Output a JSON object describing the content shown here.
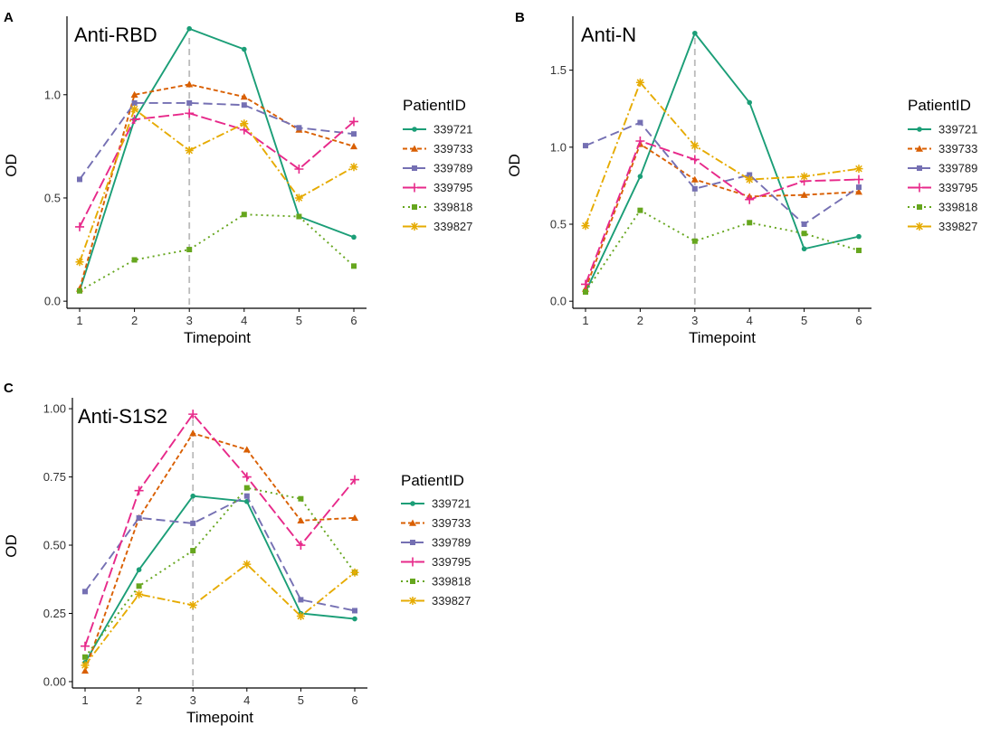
{
  "series_styles": [
    {
      "color": "#1b9e77",
      "dash": "",
      "marker": "circle"
    },
    {
      "color": "#d95f02",
      "dash": "5,3",
      "marker": "triangle"
    },
    {
      "color": "#7570b3",
      "dash": "10,5",
      "marker": "square"
    },
    {
      "color": "#e7298a",
      "dash": "12,4",
      "marker": "plus"
    },
    {
      "color": "#66a61e",
      "dash": "2,4",
      "marker": "square"
    },
    {
      "color": "#e6ab02",
      "dash": "9,3,2,3",
      "marker": "star"
    }
  ],
  "reference_line_color": "#bbbbbb",
  "chart_data": [
    {
      "type": "line",
      "panel": "A",
      "title": "Anti-RBD",
      "xlabel": "Timepoint",
      "ylabel": "OD",
      "x": [
        1,
        2,
        3,
        4,
        5,
        6
      ],
      "ylim": [
        -0.03,
        1.38
      ],
      "yticks": [
        0.0,
        0.5,
        1.0
      ],
      "ytick_labels": [
        "0.0",
        "0.5",
        "1.0"
      ],
      "vline": 3,
      "legend_title": "PatientID",
      "legend_position": "right",
      "series": [
        {
          "name": "339721",
          "values": [
            0.05,
            0.88,
            1.32,
            1.22,
            0.41,
            0.31
          ]
        },
        {
          "name": "339733",
          "values": [
            0.06,
            1.0,
            1.05,
            0.99,
            0.83,
            0.75
          ]
        },
        {
          "name": "339789",
          "values": [
            0.59,
            0.96,
            0.96,
            0.95,
            0.84,
            0.81
          ]
        },
        {
          "name": "339795",
          "values": [
            0.36,
            0.88,
            0.91,
            0.83,
            0.64,
            0.87
          ]
        },
        {
          "name": "339818",
          "values": [
            0.05,
            0.2,
            0.25,
            0.42,
            0.41,
            0.17
          ]
        },
        {
          "name": "339827",
          "values": [
            0.19,
            0.93,
            0.73,
            0.86,
            0.5,
            0.65
          ]
        }
      ]
    },
    {
      "type": "line",
      "panel": "B",
      "title": "Anti-N",
      "xlabel": "Timepoint",
      "ylabel": "OD",
      "x": [
        1,
        2,
        3,
        4,
        5,
        6
      ],
      "ylim": [
        -0.04,
        1.85
      ],
      "yticks": [
        0.0,
        0.5,
        1.0,
        1.5
      ],
      "ytick_labels": [
        "0.0",
        "0.5",
        "1.0",
        "1.5"
      ],
      "vline": 3,
      "legend_title": "PatientID",
      "legend_position": "right",
      "series": [
        {
          "name": "339721",
          "values": [
            0.06,
            0.81,
            1.74,
            1.29,
            0.34,
            0.42
          ]
        },
        {
          "name": "339733",
          "values": [
            0.08,
            1.02,
            0.79,
            0.68,
            0.69,
            0.71
          ]
        },
        {
          "name": "339789",
          "values": [
            1.01,
            1.16,
            0.73,
            0.82,
            0.5,
            0.74
          ]
        },
        {
          "name": "339795",
          "values": [
            0.11,
            1.04,
            0.92,
            0.66,
            0.78,
            0.79
          ]
        },
        {
          "name": "339818",
          "values": [
            0.06,
            0.59,
            0.39,
            0.51,
            0.44,
            0.33
          ]
        },
        {
          "name": "339827",
          "values": [
            0.49,
            1.42,
            1.01,
            0.79,
            0.81,
            0.86
          ]
        }
      ]
    },
    {
      "type": "line",
      "panel": "C",
      "title": "Anti-S1S2",
      "xlabel": "Timepoint",
      "ylabel": "OD",
      "x": [
        1,
        2,
        3,
        4,
        5,
        6
      ],
      "ylim": [
        -0.02,
        1.04
      ],
      "yticks": [
        0.0,
        0.25,
        0.5,
        0.75,
        1.0
      ],
      "ytick_labels": [
        "0.00",
        "0.25",
        "0.50",
        "0.75",
        "1.00"
      ],
      "vline": 3,
      "legend_title": "PatientID",
      "legend_position": "right",
      "series": [
        {
          "name": "339721",
          "values": [
            0.07,
            0.41,
            0.68,
            0.66,
            0.25,
            0.23
          ]
        },
        {
          "name": "339733",
          "values": [
            0.04,
            0.6,
            0.91,
            0.85,
            0.59,
            0.6
          ]
        },
        {
          "name": "339789",
          "values": [
            0.33,
            0.6,
            0.58,
            0.68,
            0.3,
            0.26
          ]
        },
        {
          "name": "339795",
          "values": [
            0.13,
            0.7,
            0.98,
            0.75,
            0.5,
            0.74
          ]
        },
        {
          "name": "339818",
          "values": [
            0.09,
            0.35,
            0.48,
            0.71,
            0.67,
            0.4
          ]
        },
        {
          "name": "339827",
          "values": [
            0.06,
            0.32,
            0.28,
            0.43,
            0.24,
            0.4
          ]
        }
      ]
    }
  ]
}
